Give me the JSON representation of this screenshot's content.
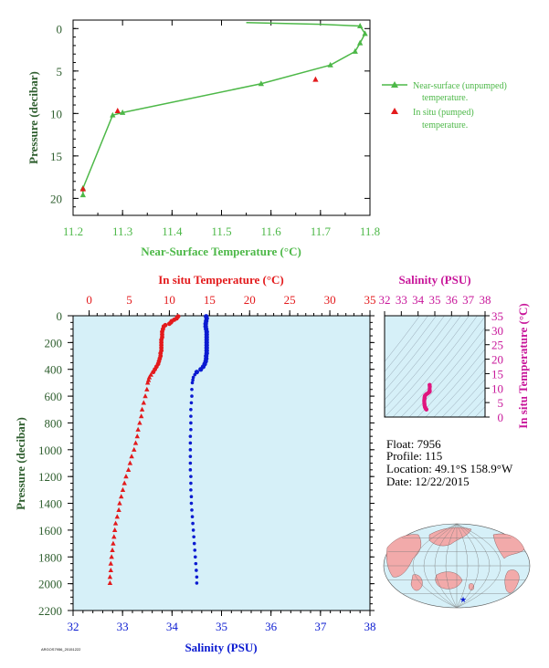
{
  "colors": {
    "green": "#4db848",
    "dark_green": "#2e5e2e",
    "red": "#e31a1c",
    "blue": "#0b1bd1",
    "magenta": "#c8169a",
    "pink": "#e0157f",
    "panel_bg": "#d6f0f8",
    "land": "#f2aaaa",
    "ocean": "#d6f0f8"
  },
  "info": {
    "float": "Float:  7956",
    "profile": "Profile:  115",
    "location": "Location:  49.1°S  158.9°W",
    "date": "Date:  12/22/2015"
  },
  "footer_tiny": "ARGOS7956_20151222",
  "chart_data": [
    {
      "type": "line",
      "title": "",
      "xlabel": "Near-Surface Temperature (°C)",
      "ylabel": "Pressure (decibar)",
      "xlim": [
        11.2,
        11.8
      ],
      "ylim": [
        22,
        -1
      ],
      "xticks": [
        11.2,
        11.3,
        11.4,
        11.5,
        11.6,
        11.7,
        11.8
      ],
      "yticks": [
        0,
        5,
        10,
        15,
        20
      ],
      "series": [
        {
          "name": "Near-surface (unpumped) temperature.",
          "marker": "triangle-line",
          "points": [
            [
              11.22,
              19.6
            ],
            [
              11.22,
              18.8
            ],
            [
              11.28,
              10.2
            ],
            [
              11.3,
              9.9
            ],
            [
              11.58,
              6.5
            ],
            [
              11.72,
              4.3
            ],
            [
              11.77,
              2.7
            ],
            [
              11.78,
              1.7
            ],
            [
              11.79,
              0.6
            ],
            [
              11.78,
              -0.3
            ],
            [
              11.7,
              -0.5
            ],
            [
              11.55,
              -0.7
            ]
          ]
        },
        {
          "name": "In situ (pumped) temperature.",
          "marker": "triangle",
          "points": [
            [
              11.22,
              18.9
            ],
            [
              11.29,
              9.7
            ],
            [
              11.69,
              6.0
            ]
          ]
        }
      ],
      "legend": [
        "Near-surface (unpumped)",
        "temperature.",
        "In situ (pumped)",
        "temperature."
      ]
    },
    {
      "type": "scatter",
      "title": "",
      "xlabel_top": "In situ Temperature (°C)",
      "xlabel_bottom": "Salinity (PSU)",
      "ylabel": "Pressure (decibar)",
      "xlim_top": [
        -2,
        35
      ],
      "xlim_bottom": [
        32,
        38
      ],
      "ylim": [
        2200,
        0
      ],
      "xticks_top": [
        0,
        5,
        10,
        15,
        20,
        25,
        30,
        35
      ],
      "xticks_bottom": [
        32,
        33,
        34,
        35,
        36,
        37,
        38
      ],
      "yticks": [
        0,
        200,
        400,
        600,
        800,
        1000,
        1200,
        1400,
        1600,
        1800,
        2000,
        2200
      ],
      "temperature": [
        [
          11.1,
          5
        ],
        [
          11.0,
          10
        ],
        [
          10.9,
          20
        ],
        [
          10.6,
          30
        ],
        [
          10.3,
          40
        ],
        [
          10.2,
          50
        ],
        [
          10.0,
          60
        ],
        [
          9.5,
          70
        ],
        [
          9.3,
          80
        ],
        [
          9.2,
          100
        ],
        [
          9.1,
          120
        ],
        [
          9.1,
          140
        ],
        [
          9.1,
          160
        ],
        [
          9.0,
          180
        ],
        [
          9.0,
          200
        ],
        [
          9.0,
          220
        ],
        [
          9.0,
          240
        ],
        [
          9.0,
          260
        ],
        [
          8.9,
          280
        ],
        [
          8.9,
          300
        ],
        [
          8.8,
          320
        ],
        [
          8.7,
          340
        ],
        [
          8.6,
          360
        ],
        [
          8.4,
          380
        ],
        [
          8.2,
          400
        ],
        [
          8.0,
          420
        ],
        [
          7.7,
          440
        ],
        [
          7.5,
          460
        ],
        [
          7.4,
          480
        ],
        [
          7.3,
          500
        ],
        [
          7.2,
          550
        ],
        [
          7.0,
          600
        ],
        [
          6.8,
          650
        ],
        [
          6.6,
          700
        ],
        [
          6.5,
          750
        ],
        [
          6.3,
          800
        ],
        [
          6.1,
          850
        ],
        [
          6.0,
          900
        ],
        [
          5.8,
          950
        ],
        [
          5.6,
          1000
        ],
        [
          5.3,
          1050
        ],
        [
          5.1,
          1100
        ],
        [
          4.9,
          1150
        ],
        [
          4.6,
          1200
        ],
        [
          4.4,
          1250
        ],
        [
          4.2,
          1300
        ],
        [
          4.0,
          1350
        ],
        [
          3.8,
          1400
        ],
        [
          3.7,
          1450
        ],
        [
          3.5,
          1500
        ],
        [
          3.3,
          1550
        ],
        [
          3.2,
          1600
        ],
        [
          3.1,
          1650
        ],
        [
          3.0,
          1700
        ],
        [
          2.9,
          1750
        ],
        [
          2.8,
          1800
        ],
        [
          2.7,
          1850
        ],
        [
          2.7,
          1900
        ],
        [
          2.6,
          1950
        ],
        [
          2.6,
          1995
        ]
      ],
      "salinity": [
        [
          34.69,
          5
        ],
        [
          34.7,
          20
        ],
        [
          34.69,
          40
        ],
        [
          34.68,
          60
        ],
        [
          34.68,
          80
        ],
        [
          34.69,
          100
        ],
        [
          34.7,
          120
        ],
        [
          34.7,
          140
        ],
        [
          34.7,
          160
        ],
        [
          34.7,
          180
        ],
        [
          34.7,
          200
        ],
        [
          34.7,
          220
        ],
        [
          34.7,
          240
        ],
        [
          34.7,
          260
        ],
        [
          34.7,
          280
        ],
        [
          34.69,
          300
        ],
        [
          34.69,
          320
        ],
        [
          34.68,
          340
        ],
        [
          34.66,
          360
        ],
        [
          34.63,
          380
        ],
        [
          34.58,
          400
        ],
        [
          34.5,
          420
        ],
        [
          34.46,
          440
        ],
        [
          34.43,
          460
        ],
        [
          34.42,
          480
        ],
        [
          34.41,
          500
        ],
        [
          34.4,
          550
        ],
        [
          34.4,
          600
        ],
        [
          34.39,
          650
        ],
        [
          34.38,
          700
        ],
        [
          34.38,
          750
        ],
        [
          34.38,
          800
        ],
        [
          34.38,
          850
        ],
        [
          34.37,
          900
        ],
        [
          34.37,
          950
        ],
        [
          34.37,
          1000
        ],
        [
          34.37,
          1050
        ],
        [
          34.37,
          1100
        ],
        [
          34.37,
          1150
        ],
        [
          34.38,
          1200
        ],
        [
          34.38,
          1250
        ],
        [
          34.38,
          1300
        ],
        [
          34.39,
          1350
        ],
        [
          34.39,
          1400
        ],
        [
          34.4,
          1450
        ],
        [
          34.41,
          1500
        ],
        [
          34.42,
          1550
        ],
        [
          34.43,
          1600
        ],
        [
          34.44,
          1650
        ],
        [
          34.45,
          1700
        ],
        [
          34.46,
          1750
        ],
        [
          34.47,
          1800
        ],
        [
          34.48,
          1850
        ],
        [
          34.49,
          1900
        ],
        [
          34.5,
          1950
        ],
        [
          34.5,
          1995
        ]
      ]
    },
    {
      "type": "scatter",
      "title": "",
      "xlabel": "Salinity (PSU)",
      "ylabel": "In situ Temperature (°C)",
      "xlim": [
        32,
        38
      ],
      "ylim": [
        0,
        35
      ],
      "xticks": [
        32,
        33,
        34,
        35,
        36,
        37,
        38
      ],
      "yticks": [
        0,
        5,
        10,
        15,
        20,
        25,
        30,
        35
      ],
      "points": [
        [
          34.69,
          11.1
        ],
        [
          34.7,
          10.5
        ],
        [
          34.69,
          9.2
        ],
        [
          34.7,
          9.0
        ],
        [
          34.69,
          8.8
        ],
        [
          34.66,
          8.6
        ],
        [
          34.58,
          8.2
        ],
        [
          34.5,
          7.9
        ],
        [
          34.43,
          7.5
        ],
        [
          34.4,
          7.2
        ],
        [
          34.39,
          6.7
        ],
        [
          34.38,
          6.2
        ],
        [
          34.37,
          5.8
        ],
        [
          34.37,
          5.2
        ],
        [
          34.38,
          4.6
        ],
        [
          34.39,
          4.0
        ],
        [
          34.41,
          3.5
        ],
        [
          34.43,
          3.2
        ],
        [
          34.45,
          3.0
        ],
        [
          34.47,
          2.8
        ],
        [
          34.49,
          2.7
        ],
        [
          34.5,
          2.6
        ]
      ]
    }
  ]
}
